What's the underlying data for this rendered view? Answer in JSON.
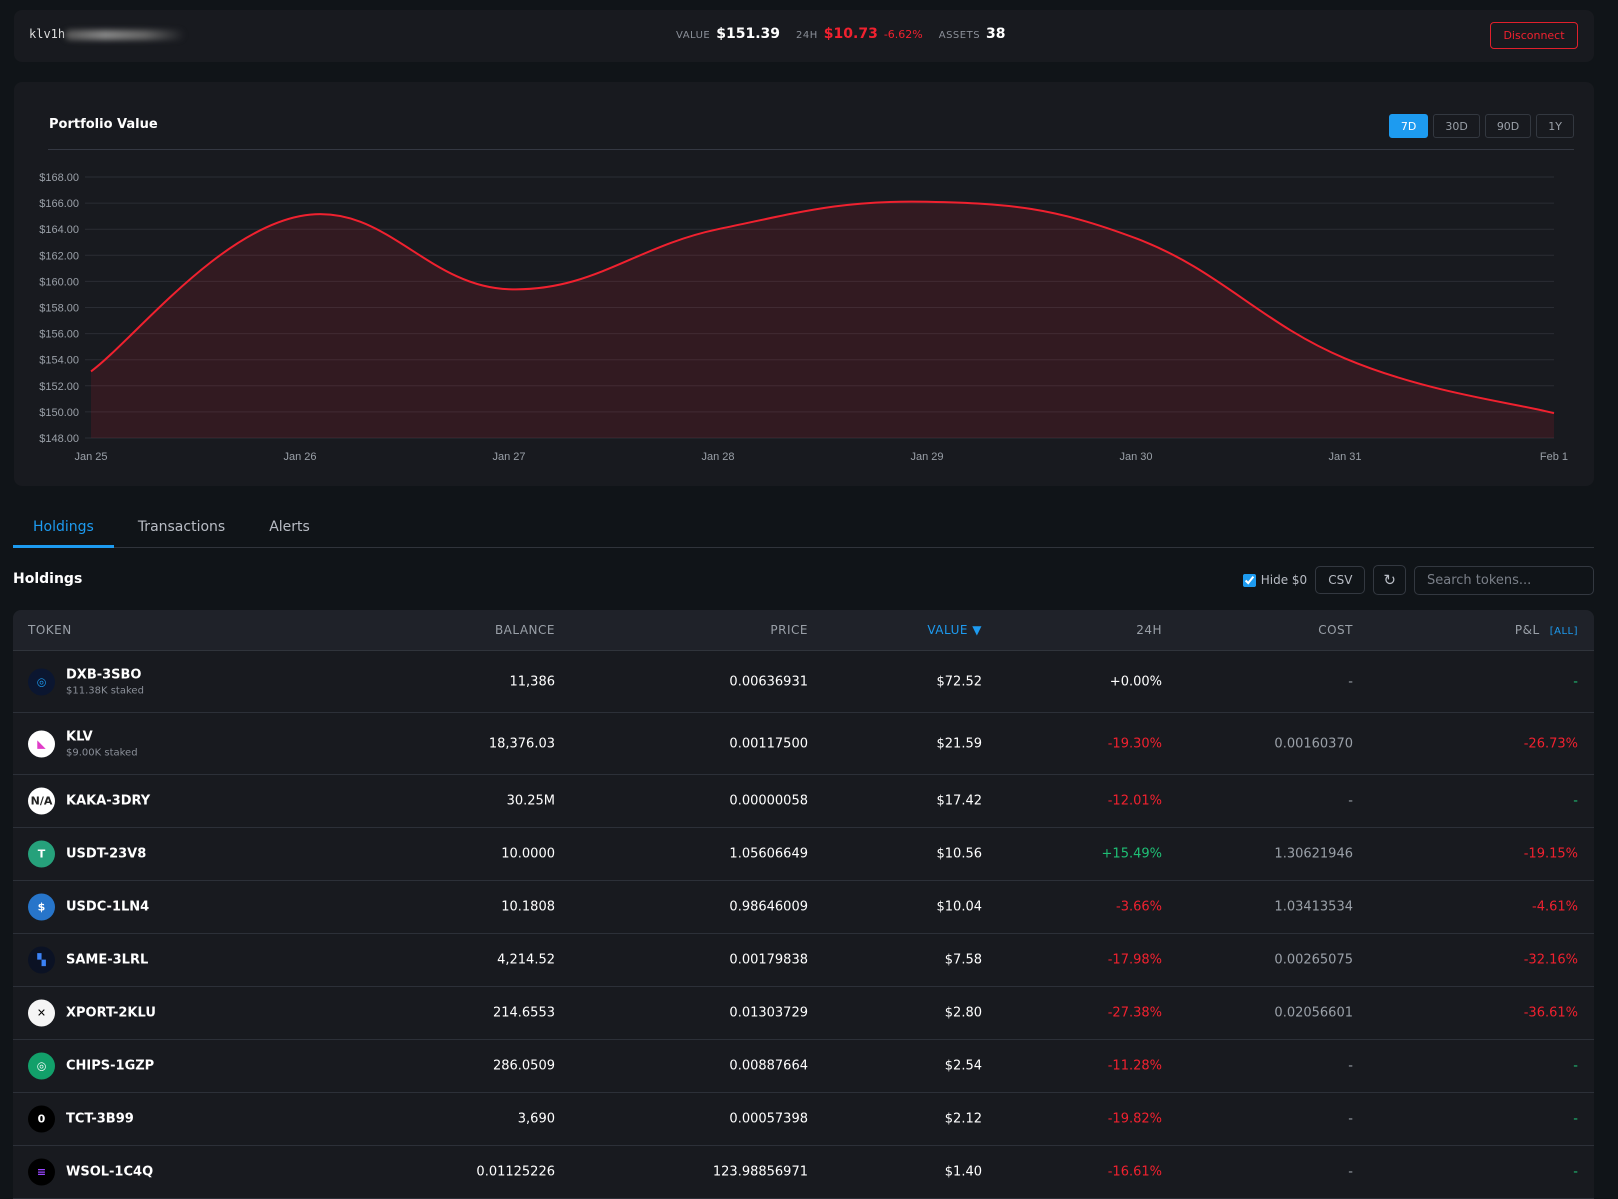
{
  "header": {
    "address": "klv1h",
    "value_label": "VALUE",
    "value": "$151.39",
    "change_label": "24H",
    "change_value": "$10.73",
    "change_pct": "-6.62%",
    "assets_label": "ASSETS",
    "assets": "38",
    "disconnect": "Disconnect"
  },
  "chart": {
    "title": "Portfolio Value",
    "ranges": [
      "7D",
      "30D",
      "90D",
      "1Y"
    ],
    "active_range": "7D"
  },
  "chart_data": {
    "type": "area",
    "title": "Portfolio Value",
    "x": [
      "Jan 25",
      "Jan 26",
      "Jan 27",
      "Jan 28",
      "Jan 29",
      "Jan 30",
      "Jan 31",
      "Feb 1"
    ],
    "values": [
      153.1,
      165.0,
      159.4,
      164.0,
      166.1,
      163.3,
      154.1,
      149.9
    ],
    "ylim": [
      148,
      168
    ],
    "yticks": [
      "$148.00",
      "$150.00",
      "$152.00",
      "$154.00",
      "$156.00",
      "$158.00",
      "$160.00",
      "$162.00",
      "$164.00",
      "$166.00",
      "$168.00"
    ],
    "color": "#f0212f",
    "grid": true
  },
  "tabs": [
    "Holdings",
    "Transactions",
    "Alerts"
  ],
  "holdings": {
    "title": "Holdings",
    "hide_zero": "Hide $0",
    "csv": "CSV",
    "refresh": "↻",
    "search_placeholder": "Search tokens...",
    "columns": [
      "TOKEN",
      "BALANCE",
      "PRICE",
      "VALUE ▼",
      "24H",
      "COST",
      "P&L"
    ],
    "pl_all": "[ALL]",
    "rows": [
      {
        "name": "DXB-3SBO",
        "staked": "$11.38K staked",
        "balance": "11,386",
        "price": "0.00636931",
        "value": "$72.52",
        "change": "+0.00%",
        "cost": "-",
        "pl": "-",
        "icon": "dxb-icon",
        "cc": "n",
        "pc": "g",
        "bg": "#0b1630",
        "fg": "#1d9bf0",
        "glyph": "◎"
      },
      {
        "name": "KLV",
        "staked": "$9.00K staked",
        "balance": "18,376.03",
        "price": "0.00117500",
        "value": "$21.59",
        "change": "-19.30%",
        "cost": "0.00160370",
        "pl": "-26.73%",
        "icon": "klv-icon",
        "cc": "r",
        "pc": "r",
        "bg": "#ffffff",
        "fg": "#e03cc8",
        "glyph": "◣"
      },
      {
        "name": "KAKA-3DRY",
        "balance": "30.25M",
        "price": "0.00000058",
        "value": "$17.42",
        "change": "-12.01%",
        "cost": "-",
        "pl": "-",
        "icon": "na-icon",
        "cc": "r",
        "pc": "g",
        "bg": "#ffffff",
        "fg": "#222",
        "glyph": "N/A"
      },
      {
        "name": "USDT-23V8",
        "balance": "10.0000",
        "price": "1.05606649",
        "value": "$10.56",
        "change": "+15.49%",
        "cost": "1.30621946",
        "pl": "-19.15%",
        "icon": "tether-icon",
        "cc": "g",
        "pc": "r",
        "bg": "#26a17b",
        "fg": "#fff",
        "glyph": "T"
      },
      {
        "name": "USDC-1LN4",
        "balance": "10.1808",
        "price": "0.98646009",
        "value": "$10.04",
        "change": "-3.66%",
        "cost": "1.03413534",
        "pl": "-4.61%",
        "icon": "usdc-icon",
        "cc": "r",
        "pc": "r",
        "bg": "#2775ca",
        "fg": "#fff",
        "glyph": "$"
      },
      {
        "name": "SAME-3LRL",
        "balance": "4,214.52",
        "price": "0.00179838",
        "value": "$7.58",
        "change": "-17.98%",
        "cost": "0.00265075",
        "pl": "-32.16%",
        "icon": "same-icon",
        "cc": "r",
        "pc": "r",
        "bg": "#0b1224",
        "fg": "#3b82f6",
        "glyph": "▚"
      },
      {
        "name": "XPORT-2KLU",
        "balance": "214.6553",
        "price": "0.01303729",
        "value": "$2.80",
        "change": "-27.38%",
        "cost": "0.02056601",
        "pl": "-36.61%",
        "icon": "xport-icon",
        "cc": "r",
        "pc": "r",
        "bg": "#f5f5f5",
        "fg": "#000",
        "glyph": "✕"
      },
      {
        "name": "CHIPS-1GZP",
        "balance": "286.0509",
        "price": "0.00887664",
        "value": "$2.54",
        "change": "-11.28%",
        "cost": "-",
        "pl": "-",
        "icon": "chips-icon",
        "cc": "r",
        "pc": "g",
        "bg": "#12a06a",
        "fg": "#fff",
        "glyph": "◎"
      },
      {
        "name": "TCT-3B99",
        "balance": "3,690",
        "price": "0.00057398",
        "value": "$2.12",
        "change": "-19.82%",
        "cost": "-",
        "pl": "-",
        "icon": "tct-icon",
        "cc": "r",
        "pc": "g",
        "bg": "#000",
        "fg": "#fff",
        "glyph": "0"
      },
      {
        "name": "WSOL-1C4Q",
        "balance": "0.01125226",
        "price": "123.98856971",
        "value": "$1.40",
        "change": "-16.61%",
        "cost": "-",
        "pl": "-",
        "icon": "wsol-icon",
        "cc": "r",
        "pc": "g",
        "bg": "#000",
        "fg": "#9945ff",
        "glyph": "≡"
      }
    ]
  }
}
